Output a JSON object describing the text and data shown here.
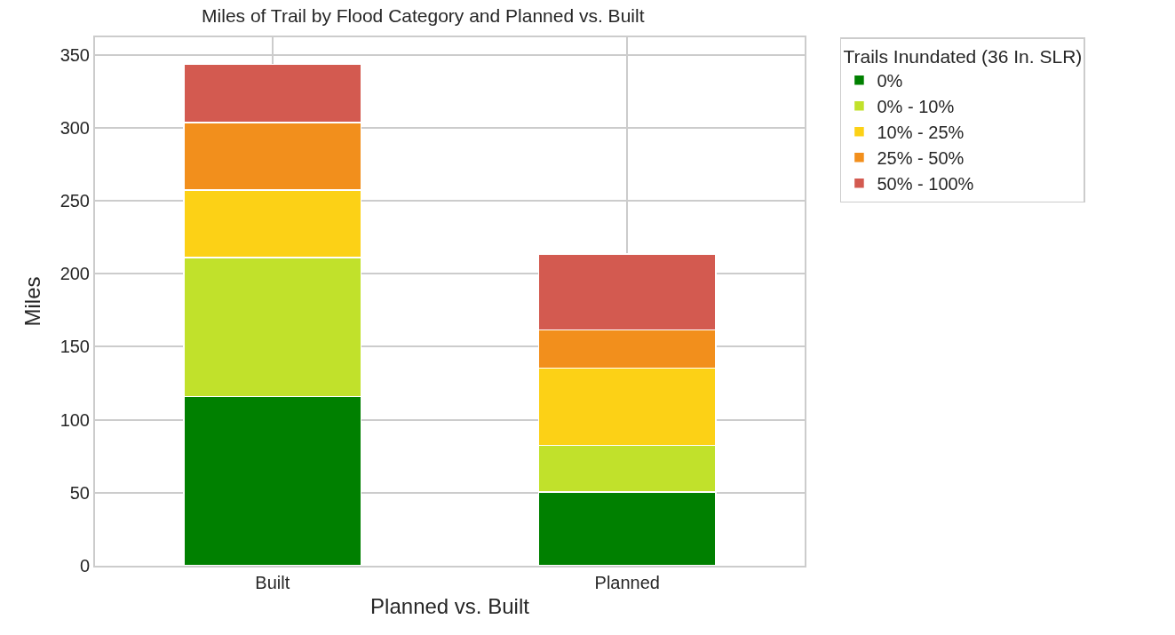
{
  "chart_data": {
    "type": "bar",
    "title": "Miles of Trail by Flood Category and Planned vs. Built",
    "xlabel": "Planned vs. Built",
    "ylabel": "Miles",
    "legend_title": "Trails Inundated (36 In. SLR)",
    "categories": [
      "Built",
      "Planned"
    ],
    "stacked": true,
    "ylim": [
      0,
      362
    ],
    "yticks": [
      0,
      50,
      100,
      150,
      200,
      250,
      300,
      350
    ],
    "grid": true,
    "legend": "top right",
    "series": [
      {
        "name": "0%",
        "color": "#008000",
        "values": [
          116,
          50.5
        ]
      },
      {
        "name": "0% - 10%",
        "color": "#c1e12b",
        "values": [
          95,
          32
        ]
      },
      {
        "name": "10% - 25%",
        "color": "#fcd116",
        "values": [
          46.5,
          53
        ]
      },
      {
        "name": "25% - 50%",
        "color": "#f28f1c",
        "values": [
          46,
          26
        ]
      },
      {
        "name": "50% - 100%",
        "color": "#d35a50",
        "values": [
          40,
          52
        ]
      }
    ]
  }
}
